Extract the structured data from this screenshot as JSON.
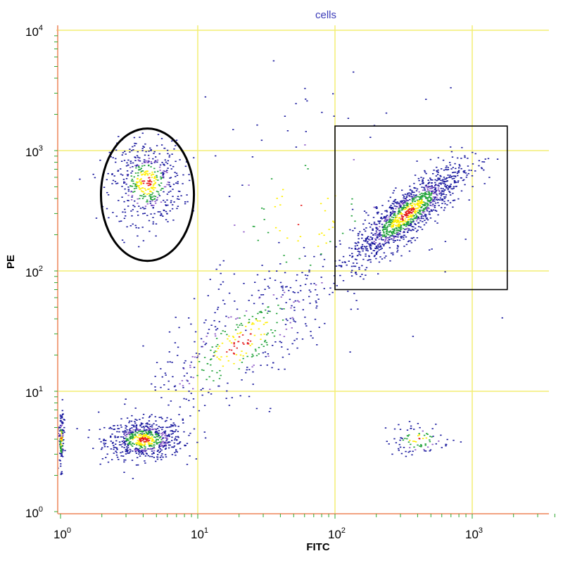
{
  "chart_data": {
    "type": "scatter",
    "title": "cells",
    "xlabel": "FITC",
    "ylabel": "PE",
    "x_scale": "log",
    "y_scale": "log",
    "xlim": [
      1,
      4000
    ],
    "ylim": [
      1,
      10000
    ],
    "grid": true,
    "x_tick_labels": [
      {
        "value": 1,
        "base": "10",
        "exp": "0"
      },
      {
        "value": 10,
        "base": "10",
        "exp": "1"
      },
      {
        "value": 100,
        "base": "10",
        "exp": "2"
      },
      {
        "value": 1000,
        "base": "10",
        "exp": "3"
      }
    ],
    "y_tick_labels": [
      {
        "value": 1,
        "base": "10",
        "exp": "0"
      },
      {
        "value": 10,
        "base": "10",
        "exp": "1"
      },
      {
        "value": 100,
        "base": "10",
        "exp": "2"
      },
      {
        "value": 1000,
        "base": "10",
        "exp": "3"
      },
      {
        "value": 10000,
        "base": "10",
        "exp": "4"
      }
    ],
    "populations": [
      {
        "center": [
          4,
          4
        ],
        "spread": [
          0.14,
          0.08
        ],
        "count": 650
      },
      {
        "center": [
          4.2,
          550
        ],
        "spread": [
          0.13,
          0.17
        ],
        "count": 500
      },
      {
        "center": [
          330,
          300
        ],
        "spread": [
          0.2,
          0.2
        ],
        "count": 1300,
        "correlated": 0.85
      },
      {
        "center": [
          400,
          4
        ],
        "spread": [
          0.12,
          0.07
        ],
        "count": 90
      },
      {
        "center": [
          20,
          25
        ],
        "spread": [
          0.35,
          0.35
        ],
        "count": 450,
        "correlated": 0.75
      },
      {
        "center": [
          60,
          300
        ],
        "spread": [
          0.45,
          0.5
        ],
        "count": 130
      },
      {
        "center": [
          1.0,
          4
        ],
        "spread": [
          0.01,
          0.12
        ],
        "count": 120
      }
    ],
    "gates": [
      {
        "type": "ellipse",
        "center": [
          4.3,
          430
        ],
        "semi_axes_decades": [
          0.42,
          0.55
        ]
      },
      {
        "type": "rectangle",
        "x": [
          100,
          1800
        ],
        "y": [
          70,
          1600
        ]
      }
    ],
    "density_colors": [
      "#1a1a9e",
      "#8e5ac8",
      "#22a33a",
      "#ffee00",
      "#e51b1b"
    ],
    "grid_color": "#f3ee73",
    "axis_color": "#f2a382"
  }
}
